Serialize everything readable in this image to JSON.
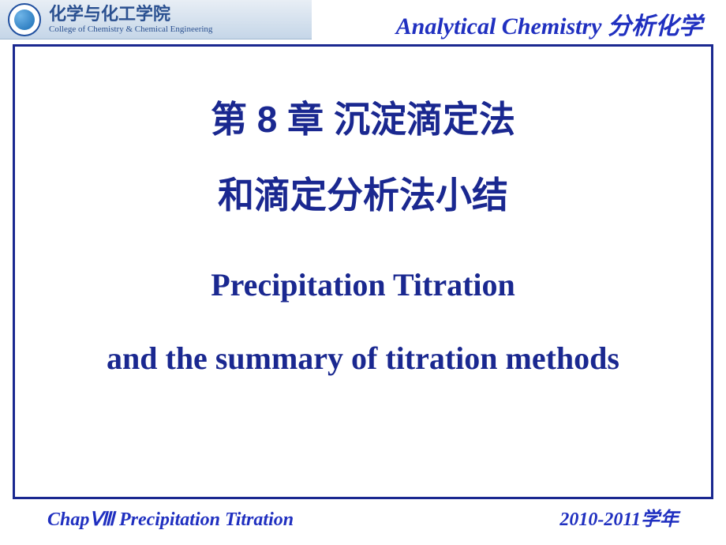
{
  "header": {
    "school_name_cn": "化学与化工学院",
    "school_name_en": "College  of  Chemistry  &   Chemical  Engineering",
    "title_en": "Analytical Chemistry",
    "title_cn": "分析化学"
  },
  "main": {
    "title_cn_line1": "第 8 章 沉淀滴定法",
    "title_cn_line2": "和滴定分析法小结",
    "title_en_line1": "Precipitation Titration",
    "title_en_line2": "and the summary of titration methods"
  },
  "footer": {
    "chapter": "ChapⅧ  Precipitation Titration",
    "year_num": "2010-2011",
    "year_cn": "学年"
  },
  "colors": {
    "primary_text": "#1a2890",
    "header_text": "#2030c0",
    "school_text": "#2a5090",
    "border": "#1a2890",
    "header_bg_top": "#e8eef5",
    "header_bg_bottom": "#c5d6e8",
    "background": "#ffffff"
  }
}
